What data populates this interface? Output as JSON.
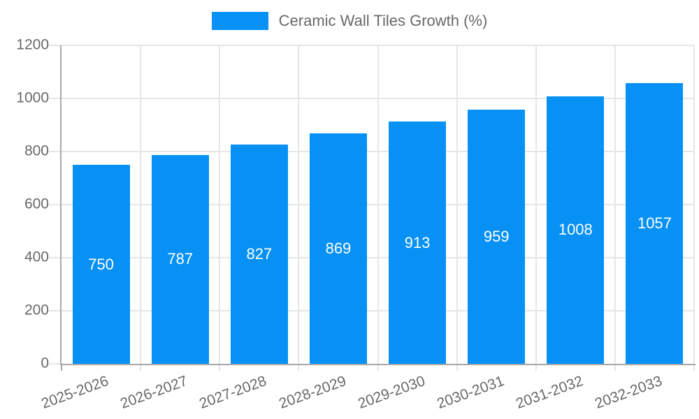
{
  "chart_data": {
    "type": "bar",
    "title": "Ceramic Wall Tiles Growth (%)",
    "legend_position": "top",
    "legend_entries": [
      "Ceramic Wall Tiles Growth (%)"
    ],
    "categories": [
      "2025-2026",
      "2026-2027",
      "2027-2028",
      "2028-2029",
      "2029-2030",
      "2030-2031",
      "2031-2032",
      "2032-2033"
    ],
    "values": [
      750,
      787,
      827,
      869,
      913,
      959,
      1008,
      1057
    ],
    "xlabel": "",
    "ylabel": "",
    "ylim": [
      0,
      1200
    ],
    "yticks": [
      0,
      200,
      400,
      600,
      800,
      1000,
      1200
    ],
    "grid": true,
    "x_label_rotation_deg": -20,
    "bar_color": "#0791f5",
    "value_label_color": "#ffffff",
    "axis_text_color": "#696969",
    "grid_color": "#e6e6e6",
    "axis_line_color": "#a8a8a8"
  }
}
